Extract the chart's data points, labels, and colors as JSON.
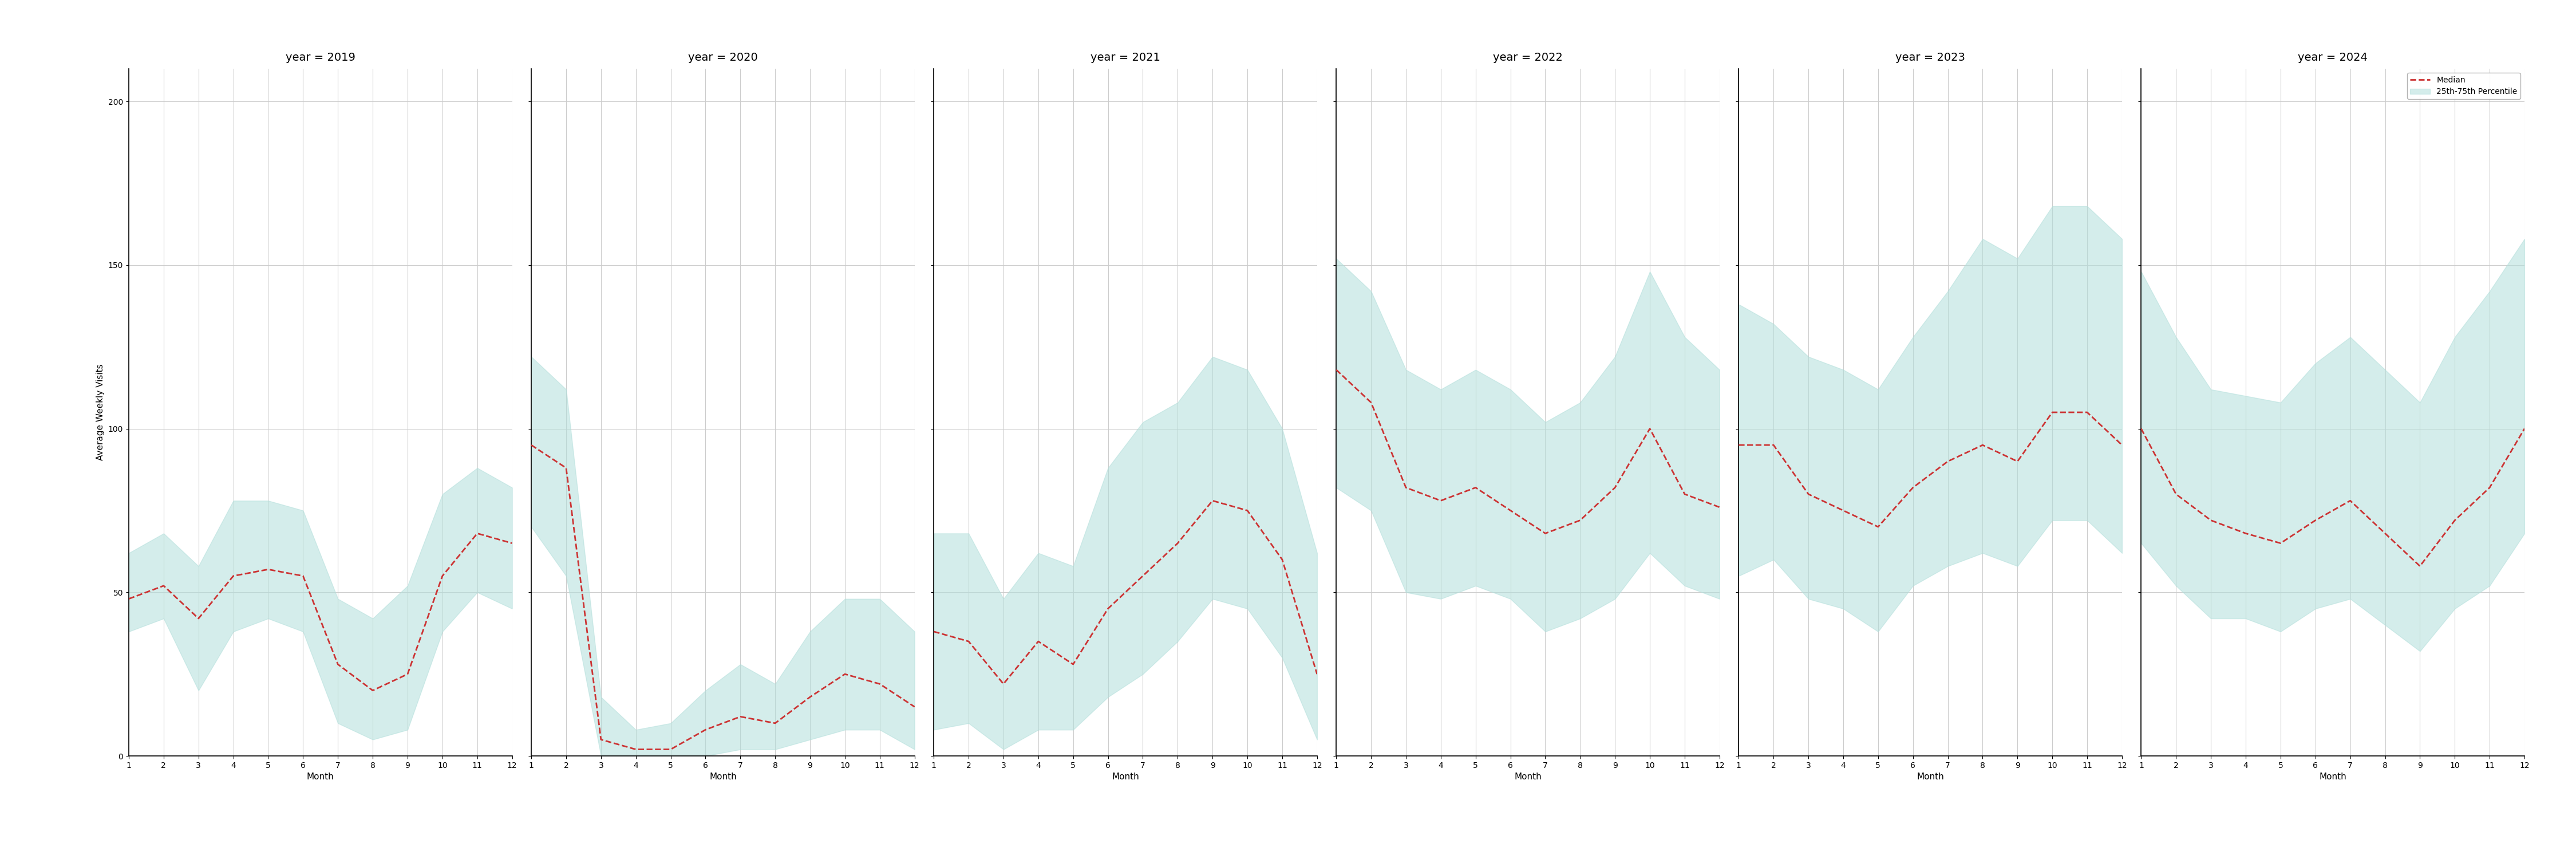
{
  "years": [
    2019,
    2020,
    2021,
    2022,
    2023,
    2024
  ],
  "months": [
    1,
    2,
    3,
    4,
    5,
    6,
    7,
    8,
    9,
    10,
    11,
    12
  ],
  "median": {
    "2019": [
      48,
      52,
      42,
      55,
      57,
      55,
      28,
      20,
      25,
      55,
      68,
      65
    ],
    "2020": [
      95,
      88,
      5,
      2,
      2,
      8,
      12,
      10,
      18,
      25,
      22,
      15
    ],
    "2021": [
      38,
      35,
      22,
      35,
      28,
      45,
      55,
      65,
      78,
      75,
      60,
      25
    ],
    "2022": [
      118,
      108,
      82,
      78,
      82,
      75,
      68,
      72,
      82,
      100,
      80,
      76
    ],
    "2023": [
      95,
      95,
      80,
      75,
      70,
      82,
      90,
      95,
      90,
      105,
      105,
      95
    ],
    "2024": [
      100,
      80,
      72,
      68,
      65,
      72,
      78,
      68,
      58,
      72,
      82,
      100
    ]
  },
  "p25": {
    "2019": [
      38,
      42,
      20,
      38,
      42,
      38,
      10,
      5,
      8,
      38,
      50,
      45
    ],
    "2020": [
      70,
      55,
      0,
      0,
      0,
      0,
      2,
      2,
      5,
      8,
      8,
      2
    ],
    "2021": [
      8,
      10,
      2,
      8,
      8,
      18,
      25,
      35,
      48,
      45,
      30,
      5
    ],
    "2022": [
      82,
      75,
      50,
      48,
      52,
      48,
      38,
      42,
      48,
      62,
      52,
      48
    ],
    "2023": [
      55,
      60,
      48,
      45,
      38,
      52,
      58,
      62,
      58,
      72,
      72,
      62
    ],
    "2024": [
      65,
      52,
      42,
      42,
      38,
      45,
      48,
      40,
      32,
      45,
      52,
      68
    ]
  },
  "p75": {
    "2019": [
      62,
      68,
      58,
      78,
      78,
      75,
      48,
      42,
      52,
      80,
      88,
      82
    ],
    "2020": [
      122,
      112,
      18,
      8,
      10,
      20,
      28,
      22,
      38,
      48,
      48,
      38
    ],
    "2021": [
      68,
      68,
      48,
      62,
      58,
      88,
      102,
      108,
      122,
      118,
      100,
      62
    ],
    "2022": [
      152,
      142,
      118,
      112,
      118,
      112,
      102,
      108,
      122,
      148,
      128,
      118
    ],
    "2023": [
      138,
      132,
      122,
      118,
      112,
      128,
      142,
      158,
      152,
      168,
      168,
      158
    ],
    "2024": [
      148,
      128,
      112,
      110,
      108,
      120,
      128,
      118,
      108,
      128,
      142,
      158
    ]
  },
  "ylim": [
    0,
    210
  ],
  "yticks": [
    0,
    50,
    100,
    150,
    200
  ],
  "ylabel": "Average Weekly Visits",
  "xlabel": "Month",
  "median_color": "#cc3333",
  "fill_color": "#b2dfdb",
  "fill_alpha": 0.55,
  "background_color": "#ffffff",
  "grid_color": "#cccccc",
  "title_fontsize": 14,
  "label_fontsize": 11,
  "tick_fontsize": 10,
  "legend_fontsize": 10
}
